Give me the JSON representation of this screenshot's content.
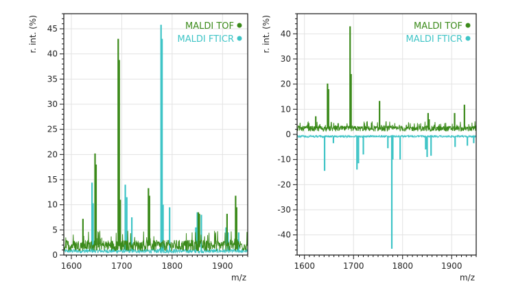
{
  "colors": {
    "tof": "#3b8a1a",
    "fticr": "#3ec4c6",
    "grid": "#e2e2e2",
    "axis": "#111111"
  },
  "chart_data": [
    {
      "type": "line",
      "title": "",
      "xlabel": "m/z",
      "ylabel": "r. int. (%)",
      "xlim": [
        1585,
        1950
      ],
      "ylim": [
        0,
        48
      ],
      "xticks": [
        1600,
        1700,
        1800,
        1900
      ],
      "yticks": [
        0,
        5,
        10,
        15,
        20,
        25,
        30,
        35,
        40,
        45
      ],
      "grid": true,
      "legend": "top-right",
      "series": [
        {
          "name": "MALDI TOF",
          "baseline": 1.9,
          "peaks": [
            [
              1623,
              7.2
            ],
            [
              1647,
              20.2
            ],
            [
              1649,
              18.0
            ],
            [
              1693,
              43.0
            ],
            [
              1695,
              38.8
            ],
            [
              1697,
              11.0
            ],
            [
              1753,
              13.3
            ],
            [
              1755,
              11.8
            ],
            [
              1852,
              8.5
            ],
            [
              1854,
              8.2
            ],
            [
              1909,
              8.2
            ],
            [
              1926,
              11.8
            ],
            [
              1928,
              9.5
            ]
          ]
        },
        {
          "name": "MALDI FTICR",
          "baseline": 0.8,
          "peaks": [
            [
              1641,
              14.4
            ],
            [
              1643,
              10.3
            ],
            [
              1707,
              14.0
            ],
            [
              1710,
              11.5
            ],
            [
              1720,
              7.5
            ],
            [
              1778,
              45.8
            ],
            [
              1780,
              43.0
            ],
            [
              1782,
              10.0
            ],
            [
              1795,
              9.5
            ],
            [
              1847,
              5.5
            ],
            [
              1850,
              8.5
            ],
            [
              1858,
              8.0
            ],
            [
              1907,
              5.5
            ],
            [
              1911,
              4.5
            ],
            [
              1932,
              4.5
            ]
          ]
        }
      ]
    },
    {
      "type": "line",
      "title": "",
      "xlabel": "m/z",
      "ylabel": "r. int. (%)",
      "xlim": [
        1585,
        1950
      ],
      "ylim": [
        -48,
        48
      ],
      "xticks": [
        1600,
        1700,
        1800,
        1900
      ],
      "yticks": [
        -40,
        -30,
        -20,
        -10,
        0,
        10,
        20,
        30,
        40
      ],
      "grid": true,
      "legend": "top-right",
      "series": [
        {
          "name": "MALDI TOF",
          "baseline": 2.3,
          "peaks": [
            [
              1623,
              7.2
            ],
            [
              1647,
              20.2
            ],
            [
              1649,
              18.0
            ],
            [
              1693,
              43.0
            ],
            [
              1695,
              24.0
            ],
            [
              1753,
              13.3
            ],
            [
              1852,
              8.5
            ],
            [
              1854,
              6.0
            ],
            [
              1906,
              8.5
            ],
            [
              1926,
              11.8
            ]
          ]
        },
        {
          "name": "MALDI FTICR",
          "baseline": -0.8,
          "peaks": [
            [
              1641,
              -14.5
            ],
            [
              1659,
              -3.5
            ],
            [
              1707,
              -14.0
            ],
            [
              1710,
              -11.5
            ],
            [
              1720,
              -8.0
            ],
            [
              1770,
              -5.5
            ],
            [
              1778,
              -45.5
            ],
            [
              1780,
              -10.0
            ],
            [
              1795,
              -10.0
            ],
            [
              1847,
              -6.0
            ],
            [
              1850,
              -9.0
            ],
            [
              1858,
              -8.5
            ],
            [
              1907,
              -5.0
            ],
            [
              1932,
              -4.5
            ],
            [
              1945,
              -3.5
            ]
          ]
        }
      ]
    }
  ]
}
